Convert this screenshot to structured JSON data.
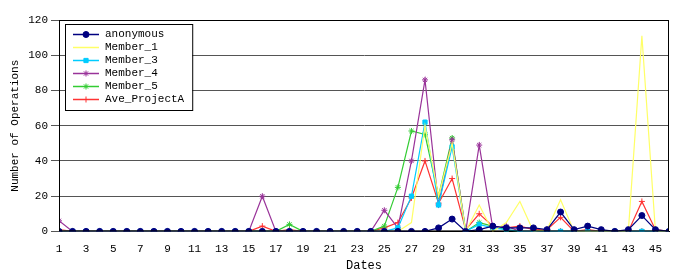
{
  "chart_data": {
    "type": "line",
    "x_label": "Dates",
    "y_label": "Number of Operations",
    "x": [
      1,
      2,
      3,
      4,
      5,
      6,
      7,
      8,
      9,
      10,
      11,
      12,
      13,
      14,
      15,
      16,
      17,
      18,
      19,
      20,
      21,
      22,
      23,
      24,
      25,
      26,
      27,
      28,
      29,
      30,
      31,
      32,
      33,
      34,
      35,
      36,
      37,
      38,
      39,
      40,
      41,
      42,
      43,
      44,
      45,
      46
    ],
    "xlim": [
      1,
      46
    ],
    "xticks": [
      1,
      3,
      5,
      7,
      9,
      11,
      13,
      15,
      17,
      19,
      21,
      23,
      25,
      27,
      29,
      31,
      33,
      35,
      37,
      39,
      41,
      43,
      45
    ],
    "ylim": [
      0,
      120
    ],
    "yticks": [
      0,
      20,
      40,
      60,
      80,
      100,
      120
    ],
    "grid": true,
    "legend": "upper left",
    "series": [
      {
        "name": "anonymous",
        "color": "#000080",
        "marker": "circle",
        "values": [
          0,
          0,
          0,
          0,
          0,
          0,
          0,
          0,
          0,
          0,
          0,
          0,
          0,
          0,
          0,
          0,
          0,
          0,
          0,
          0,
          0,
          0,
          0,
          0,
          0,
          0,
          0,
          0,
          2,
          7,
          0,
          1,
          3,
          2,
          2,
          2,
          1,
          11,
          1,
          3,
          1,
          0,
          1,
          9,
          1,
          0
        ]
      },
      {
        "name": "Member_1",
        "color": "#ffff66",
        "marker": "none",
        "values": [
          0,
          0,
          0,
          0,
          0,
          0,
          0,
          0,
          0,
          0,
          0,
          0,
          0,
          0,
          0,
          0,
          0,
          0,
          0,
          0,
          0,
          0,
          0,
          0,
          0,
          0,
          5,
          60,
          20,
          50,
          0,
          15,
          0,
          5,
          17,
          0,
          1,
          18,
          0,
          0,
          0,
          0,
          0,
          111,
          0,
          0
        ]
      },
      {
        "name": "Member_3",
        "color": "#00ccff",
        "marker": "rect",
        "values": [
          0,
          0,
          0,
          0,
          0,
          0,
          0,
          0,
          0,
          0,
          0,
          0,
          0,
          0,
          0,
          0,
          0,
          0,
          0,
          0,
          0,
          0,
          0,
          0,
          0,
          2,
          20,
          62,
          15,
          48,
          0,
          4,
          2,
          1,
          0,
          0,
          0,
          0,
          0,
          0,
          0,
          0,
          0,
          0,
          0,
          0
        ]
      },
      {
        "name": "Member_4",
        "color": "#993399",
        "marker": "star",
        "values": [
          6,
          0,
          0,
          0,
          0,
          0,
          0,
          0,
          0,
          0,
          0,
          0,
          0,
          0,
          0,
          20,
          0,
          0,
          0,
          0,
          0,
          0,
          0,
          0,
          12,
          2,
          40,
          86,
          15,
          52,
          0,
          49,
          2,
          3,
          0,
          0,
          0,
          0,
          0,
          0,
          0,
          0,
          0,
          0,
          0,
          0
        ]
      },
      {
        "name": "Member_5",
        "color": "#33cc33",
        "marker": "star",
        "values": [
          0,
          0,
          0,
          0,
          0,
          0,
          0,
          0,
          0,
          0,
          0,
          0,
          0,
          0,
          0,
          0,
          0,
          4,
          0,
          0,
          0,
          0,
          0,
          0,
          3,
          25,
          57,
          55,
          20,
          53,
          0,
          5,
          3,
          1,
          0,
          0,
          0,
          0,
          0,
          0,
          0,
          0,
          0,
          0,
          0,
          0
        ]
      },
      {
        "name": "Ave_ProjectA",
        "color": "#ff3333",
        "marker": "cross",
        "values": [
          1,
          0,
          0,
          0,
          0,
          0,
          0,
          0,
          0,
          0,
          0,
          0,
          0,
          0,
          0,
          3,
          0,
          1,
          0,
          0,
          0,
          0,
          0,
          0,
          2,
          5,
          19,
          40,
          16,
          30,
          1,
          10,
          3,
          2,
          3,
          1,
          1,
          8,
          0,
          1,
          0,
          0,
          0,
          17,
          1,
          0
        ]
      }
    ]
  }
}
